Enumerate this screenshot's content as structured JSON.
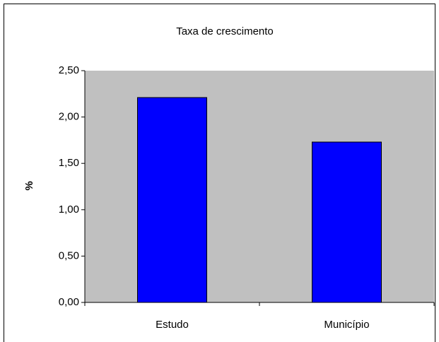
{
  "chart_data": {
    "type": "bar",
    "title": "Taxa de crescimento",
    "y_label": "%",
    "categories": [
      "Estudo",
      "Município"
    ],
    "values": [
      2.21,
      1.73
    ],
    "color": "#0000ff",
    "ylim": [
      0,
      2.5
    ],
    "yticks": [
      {
        "value": 0,
        "label": "0,00"
      },
      {
        "value": 0.5,
        "label": "0,50"
      },
      {
        "value": 1,
        "label": "1,00"
      },
      {
        "value": 1.5,
        "label": "1,50"
      },
      {
        "value": 2,
        "label": "2,00"
      },
      {
        "value": 2.5,
        "label": "2,50"
      }
    ],
    "plot_background": "#c0c0c0",
    "grid": false
  }
}
